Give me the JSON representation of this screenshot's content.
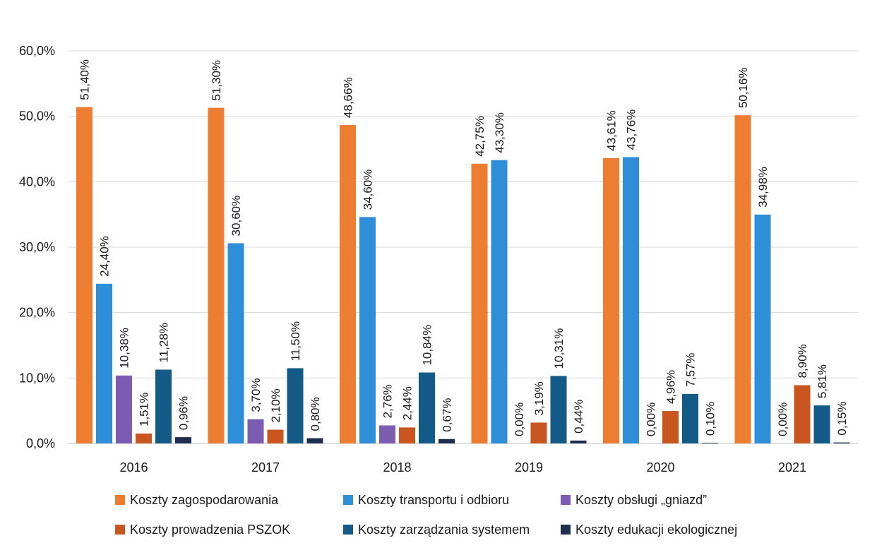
{
  "chart_data": {
    "type": "bar",
    "title": "",
    "xlabel": "",
    "ylabel": "",
    "ylim": [
      0,
      60
    ],
    "yticks": [
      0,
      10,
      20,
      30,
      40,
      50,
      60
    ],
    "ytick_labels": [
      "0,0%",
      "10,0%",
      "20,0%",
      "30,0%",
      "40,0%",
      "50,0%",
      "60,0%"
    ],
    "grid": true,
    "legend_position": "bottom",
    "categories": [
      "2016",
      "2017",
      "2018",
      "2019",
      "2020",
      "2021"
    ],
    "series": [
      {
        "name": "Koszty zagospodarowania",
        "color": "#ED7D31",
        "values": [
          51.4,
          51.3,
          48.66,
          42.75,
          43.61,
          50.16
        ],
        "labels": [
          "51,40%",
          "51,30%",
          "48,66%",
          "42,75%",
          "43,61%",
          "50,16%"
        ]
      },
      {
        "name": "Koszty transportu i odbioru",
        "color": "#2E8FD8",
        "values": [
          24.4,
          30.6,
          34.6,
          43.3,
          43.76,
          34.98
        ],
        "labels": [
          "24,40%",
          "30,60%",
          "34,60%",
          "43,30%",
          "43,76%",
          "34,98%"
        ]
      },
      {
        "name": "Koszty obsługi „gniazd”",
        "color": "#7B5CB0",
        "values": [
          10.38,
          3.7,
          2.76,
          0.0,
          0.0,
          0.0
        ],
        "labels": [
          "10,38%",
          "3,70%",
          "2,76%",
          "0,00%",
          "0,00%",
          "0,00%"
        ]
      },
      {
        "name": "Koszty prowadzenia PSZOK",
        "color": "#C8561E",
        "values": [
          1.51,
          2.1,
          2.44,
          3.19,
          4.96,
          8.9
        ],
        "labels": [
          "1,51%",
          "2,10%",
          "2,44%",
          "3,19%",
          "4,96%",
          "8,90%"
        ]
      },
      {
        "name": "Koszty zarządzania systemem",
        "color": "#135A86",
        "values": [
          11.28,
          11.5,
          10.84,
          10.31,
          7.57,
          5.81
        ],
        "labels": [
          "11,28%",
          "11,50%",
          "10,84%",
          "10,31%",
          "7,57%",
          "5,81%"
        ]
      },
      {
        "name": "Koszty edukacji ekologicznej",
        "color": "#1F2D4E",
        "values": [
          0.96,
          0.8,
          0.67,
          0.44,
          0.1,
          0.15
        ],
        "labels": [
          "0,96%",
          "0,80%",
          "0,67%",
          "0,44%",
          "0,10%",
          "0,15%"
        ]
      }
    ],
    "grid_color": "#D9D9D9"
  }
}
